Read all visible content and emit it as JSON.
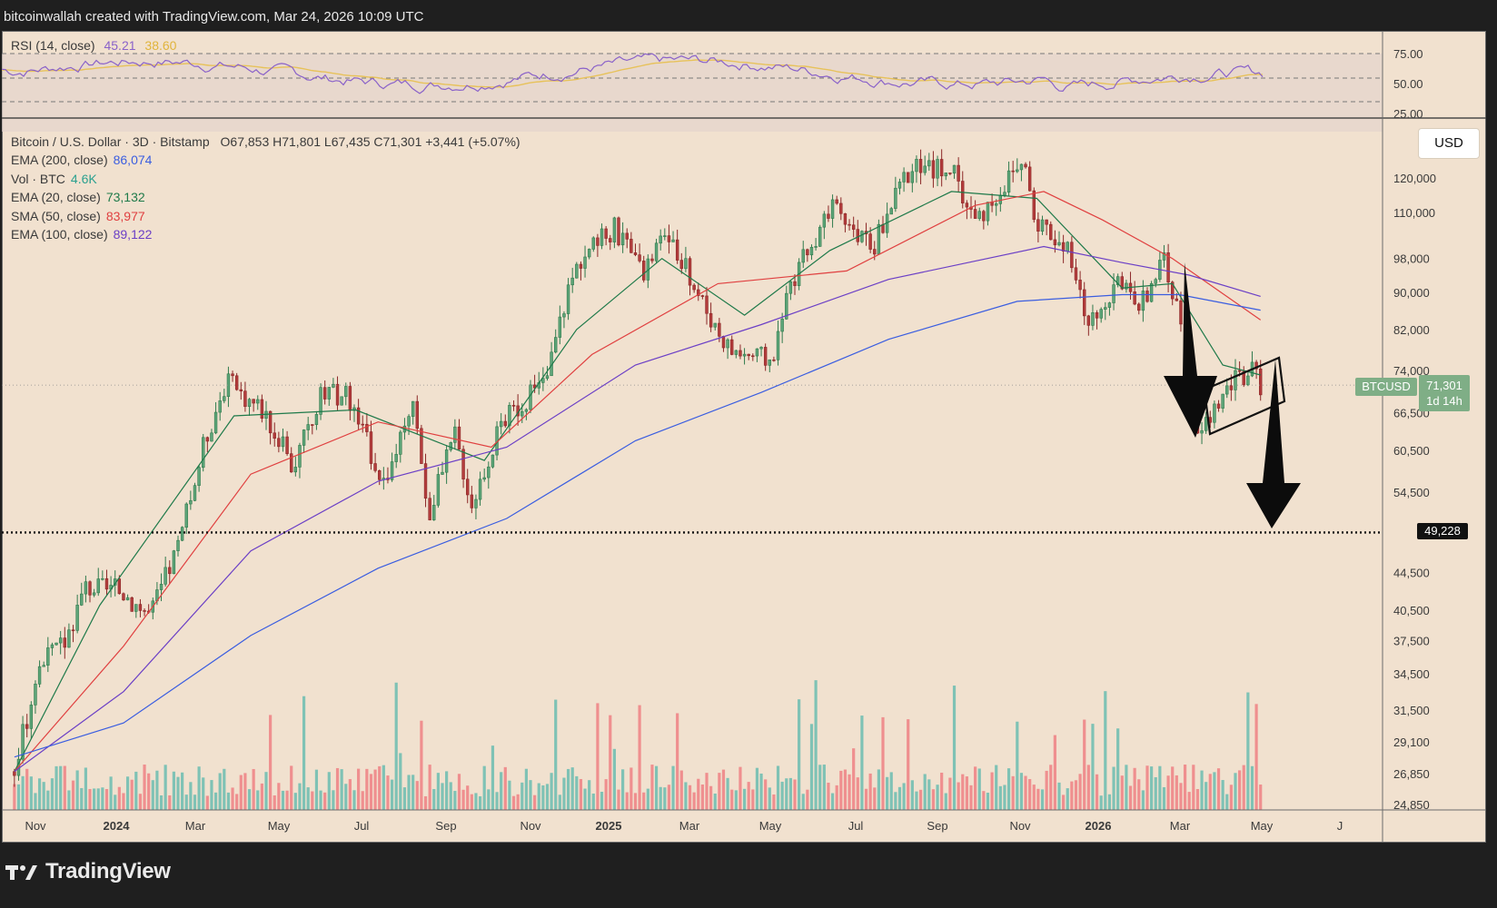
{
  "header": {
    "attribution": "bitcoinwallah created with TradingView.com, Mar 24, 2026 10:09 UTC"
  },
  "footer": {
    "brand": "TradingView"
  },
  "colors": {
    "bg": "#f1e1cf",
    "up": "#2f7a4c",
    "down": "#8b2727",
    "ema20": "#1f7a4a",
    "sma50": "#e04040",
    "ema100": "#6b3fc6",
    "ema200": "#3a5de0",
    "rsi": "#8a62c9",
    "rsi_ma": "#e7c25a",
    "vol_up": "#7fc2b5",
    "vol_down": "#ef8f8f"
  },
  "rsi_panel": {
    "label": "RSI (14, close)",
    "rsi_value": "45.21",
    "ma_value": "38.60",
    "levels": [
      "75.00",
      "50.00",
      "25.00"
    ]
  },
  "legend": {
    "symbol": "Bitcoin / U.S. Dollar · 3D · Bitstamp",
    "ohlc": "O67,853 H71,801 L67,435 C71,301 +3,441 (+5.07%)",
    "rows": [
      {
        "label": "EMA (200, close)",
        "value": "86,074",
        "color": "#3a5de0"
      },
      {
        "label": "Vol · BTC",
        "value": "4.6K",
        "color": "#2aa08f"
      },
      {
        "label": "EMA (20, close)",
        "value": "73,132",
        "color": "#1f7a4a"
      },
      {
        "label": "SMA (50, close)",
        "value": "83,977",
        "color": "#e04040"
      },
      {
        "label": "EMA (100, close)",
        "value": "89,122",
        "color": "#6b3fc6"
      }
    ]
  },
  "currency_button": "USD",
  "price_tag": {
    "symbol": "BTCUSD",
    "price": "71,301",
    "countdown": "1d 14h"
  },
  "target_level": {
    "label": "49,228",
    "value": 49228
  },
  "chart_data": {
    "type": "candlestick",
    "y_axis_labels": [
      "120,000",
      "110,000",
      "98,000",
      "90,000",
      "82,000",
      "74,000",
      "66,500",
      "60,500",
      "54,500",
      "49,228",
      "44,500",
      "40,500",
      "37,500",
      "34,500",
      "31,500",
      "29,100",
      "26,850",
      "24,850"
    ],
    "y_axis_values": [
      120000,
      110000,
      98000,
      90000,
      82000,
      74000,
      66500,
      60500,
      54500,
      49228,
      44500,
      40500,
      37500,
      34500,
      31500,
      29100,
      26850,
      24850
    ],
    "y_scale": "log",
    "x_axis_labels": [
      "Nov",
      "2024",
      "Mar",
      "May",
      "Jul",
      "Sep",
      "Nov",
      "2025",
      "Mar",
      "May",
      "Jul",
      "Sep",
      "Nov",
      "2026",
      "Mar",
      "May",
      "J"
    ],
    "bold_x_labels": [
      "2024",
      "2025",
      "2026"
    ],
    "price_path": [
      [
        "2023-10-15",
        27000
      ],
      [
        "2023-11-01",
        35000
      ],
      [
        "2023-11-20",
        37500
      ],
      [
        "2023-12-05",
        43000
      ],
      [
        "2023-12-31",
        42500
      ],
      [
        "2024-01-20",
        40000
      ],
      [
        "2024-02-10",
        48000
      ],
      [
        "2024-02-28",
        62000
      ],
      [
        "2024-03-14",
        72000
      ],
      [
        "2024-04-10",
        67000
      ],
      [
        "2024-05-01",
        58000
      ],
      [
        "2024-05-20",
        69000
      ],
      [
        "2024-06-08",
        70000
      ],
      [
        "2024-07-05",
        56000
      ],
      [
        "2024-07-28",
        68000
      ],
      [
        "2024-08-05",
        51000
      ],
      [
        "2024-08-25",
        63000
      ],
      [
        "2024-09-06",
        53000
      ],
      [
        "2024-09-27",
        65000
      ],
      [
        "2024-10-29",
        72000
      ],
      [
        "2024-11-12",
        89000
      ],
      [
        "2024-11-22",
        98000
      ],
      [
        "2024-12-17",
        106000
      ],
      [
        "2025-01-05",
        94000
      ],
      [
        "2025-01-22",
        105000
      ],
      [
        "2025-02-25",
        84000
      ],
      [
        "2025-03-10",
        78000
      ],
      [
        "2025-04-08",
        76000
      ],
      [
        "2025-04-25",
        94000
      ],
      [
        "2025-05-22",
        111000
      ],
      [
        "2025-06-20",
        101000
      ],
      [
        "2025-07-14",
        122000
      ],
      [
        "2025-08-14",
        124000
      ],
      [
        "2025-09-01",
        108000
      ],
      [
        "2025-10-06",
        126000
      ],
      [
        "2025-10-11",
        110000
      ],
      [
        "2025-11-05",
        101000
      ],
      [
        "2025-11-21",
        83000
      ],
      [
        "2025-12-10",
        92000
      ],
      [
        "2025-12-31",
        87500
      ],
      [
        "2026-01-14",
        97000
      ],
      [
        "2026-02-01",
        78000
      ],
      [
        "2026-02-06",
        62000
      ],
      [
        "2026-02-20",
        68000
      ],
      [
        "2026-03-05",
        72000
      ],
      [
        "2026-03-18",
        74000
      ],
      [
        "2026-03-24",
        71301
      ]
    ],
    "moving_averages": {
      "ema20": [
        [
          "2023-10-15",
          27000
        ],
        [
          "2023-12-15",
          41000
        ],
        [
          "2024-03-20",
          66000
        ],
        [
          "2024-06-15",
          67000
        ],
        [
          "2024-09-15",
          59000
        ],
        [
          "2024-11-20",
          82000
        ],
        [
          "2025-01-20",
          98000
        ],
        [
          "2025-03-20",
          85000
        ],
        [
          "2025-05-20",
          100000
        ],
        [
          "2025-08-15",
          116000
        ],
        [
          "2025-10-15",
          114000
        ],
        [
          "2025-12-15",
          91000
        ],
        [
          "2026-01-20",
          92000
        ],
        [
          "2026-02-25",
          75000
        ],
        [
          "2026-03-24",
          73132
        ]
      ],
      "sma50": [
        [
          "2023-10-15",
          27000
        ],
        [
          "2024-01-01",
          37000
        ],
        [
          "2024-04-01",
          57000
        ],
        [
          "2024-07-01",
          65000
        ],
        [
          "2024-09-20",
          61000
        ],
        [
          "2024-12-01",
          77000
        ],
        [
          "2025-03-01",
          92000
        ],
        [
          "2025-06-01",
          95000
        ],
        [
          "2025-09-01",
          112000
        ],
        [
          "2025-10-20",
          116000
        ],
        [
          "2025-12-01",
          108000
        ],
        [
          "2026-01-20",
          98000
        ],
        [
          "2026-03-24",
          83977
        ]
      ],
      "ema100": [
        [
          "2023-10-15",
          27000
        ],
        [
          "2024-01-01",
          33000
        ],
        [
          "2024-04-01",
          47000
        ],
        [
          "2024-07-01",
          56000
        ],
        [
          "2024-10-01",
          61000
        ],
        [
          "2025-01-01",
          75000
        ],
        [
          "2025-04-01",
          83000
        ],
        [
          "2025-07-01",
          93000
        ],
        [
          "2025-10-20",
          101000
        ],
        [
          "2025-12-15",
          97000
        ],
        [
          "2026-02-01",
          94000
        ],
        [
          "2026-03-24",
          89122
        ]
      ],
      "ema200": [
        [
          "2023-10-15",
          28000
        ],
        [
          "2024-01-01",
          30500
        ],
        [
          "2024-04-01",
          38000
        ],
        [
          "2024-07-01",
          45000
        ],
        [
          "2024-10-01",
          51000
        ],
        [
          "2025-01-01",
          62000
        ],
        [
          "2025-04-01",
          70000
        ],
        [
          "2025-07-01",
          80000
        ],
        [
          "2025-10-01",
          88000
        ],
        [
          "2025-12-15",
          89500
        ],
        [
          "2026-01-25",
          89500
        ],
        [
          "2026-03-24",
          86074
        ]
      ]
    },
    "annotations": [
      "bear flag channel",
      "downward arrows",
      "target line at 49,228"
    ]
  }
}
